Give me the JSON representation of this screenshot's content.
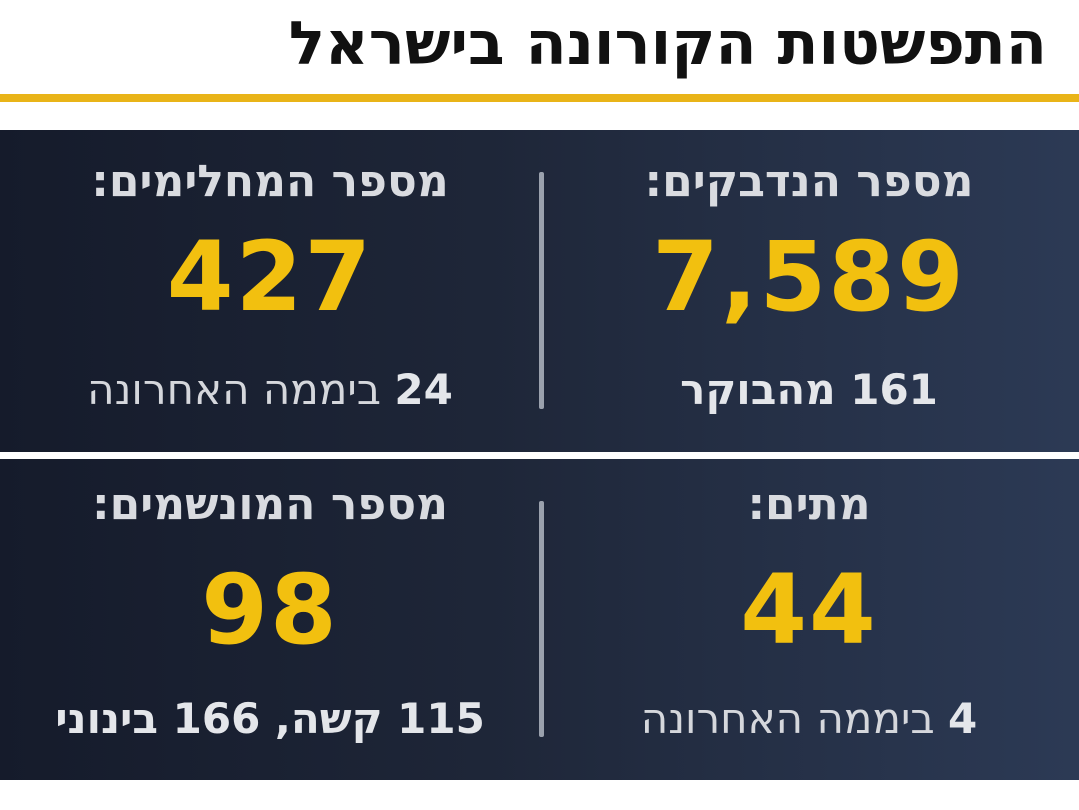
{
  "header": {
    "title": "התפשטות הקורונה בישראל"
  },
  "colors": {
    "accent": "#e9b418",
    "value": "#f2c00f",
    "panel_dark": "#151b2b",
    "panel_light": "#2c3a55"
  },
  "stats": {
    "infected": {
      "label": "מספר הנדבקים:",
      "value": "7,589",
      "sub": "161 מהבוקר"
    },
    "recovered": {
      "label": "מספר המחלימים:",
      "value": "427",
      "sub_number": "24",
      "sub_text": " ביממה האחרונה"
    },
    "deaths": {
      "label": "מתים:",
      "value": "44",
      "sub_number": "4",
      "sub_text": " ביממה האחרונה"
    },
    "ventilated": {
      "label": "מספר המונשמים:",
      "value": "98",
      "sub": "115 קשה, 166 בינוני"
    }
  }
}
